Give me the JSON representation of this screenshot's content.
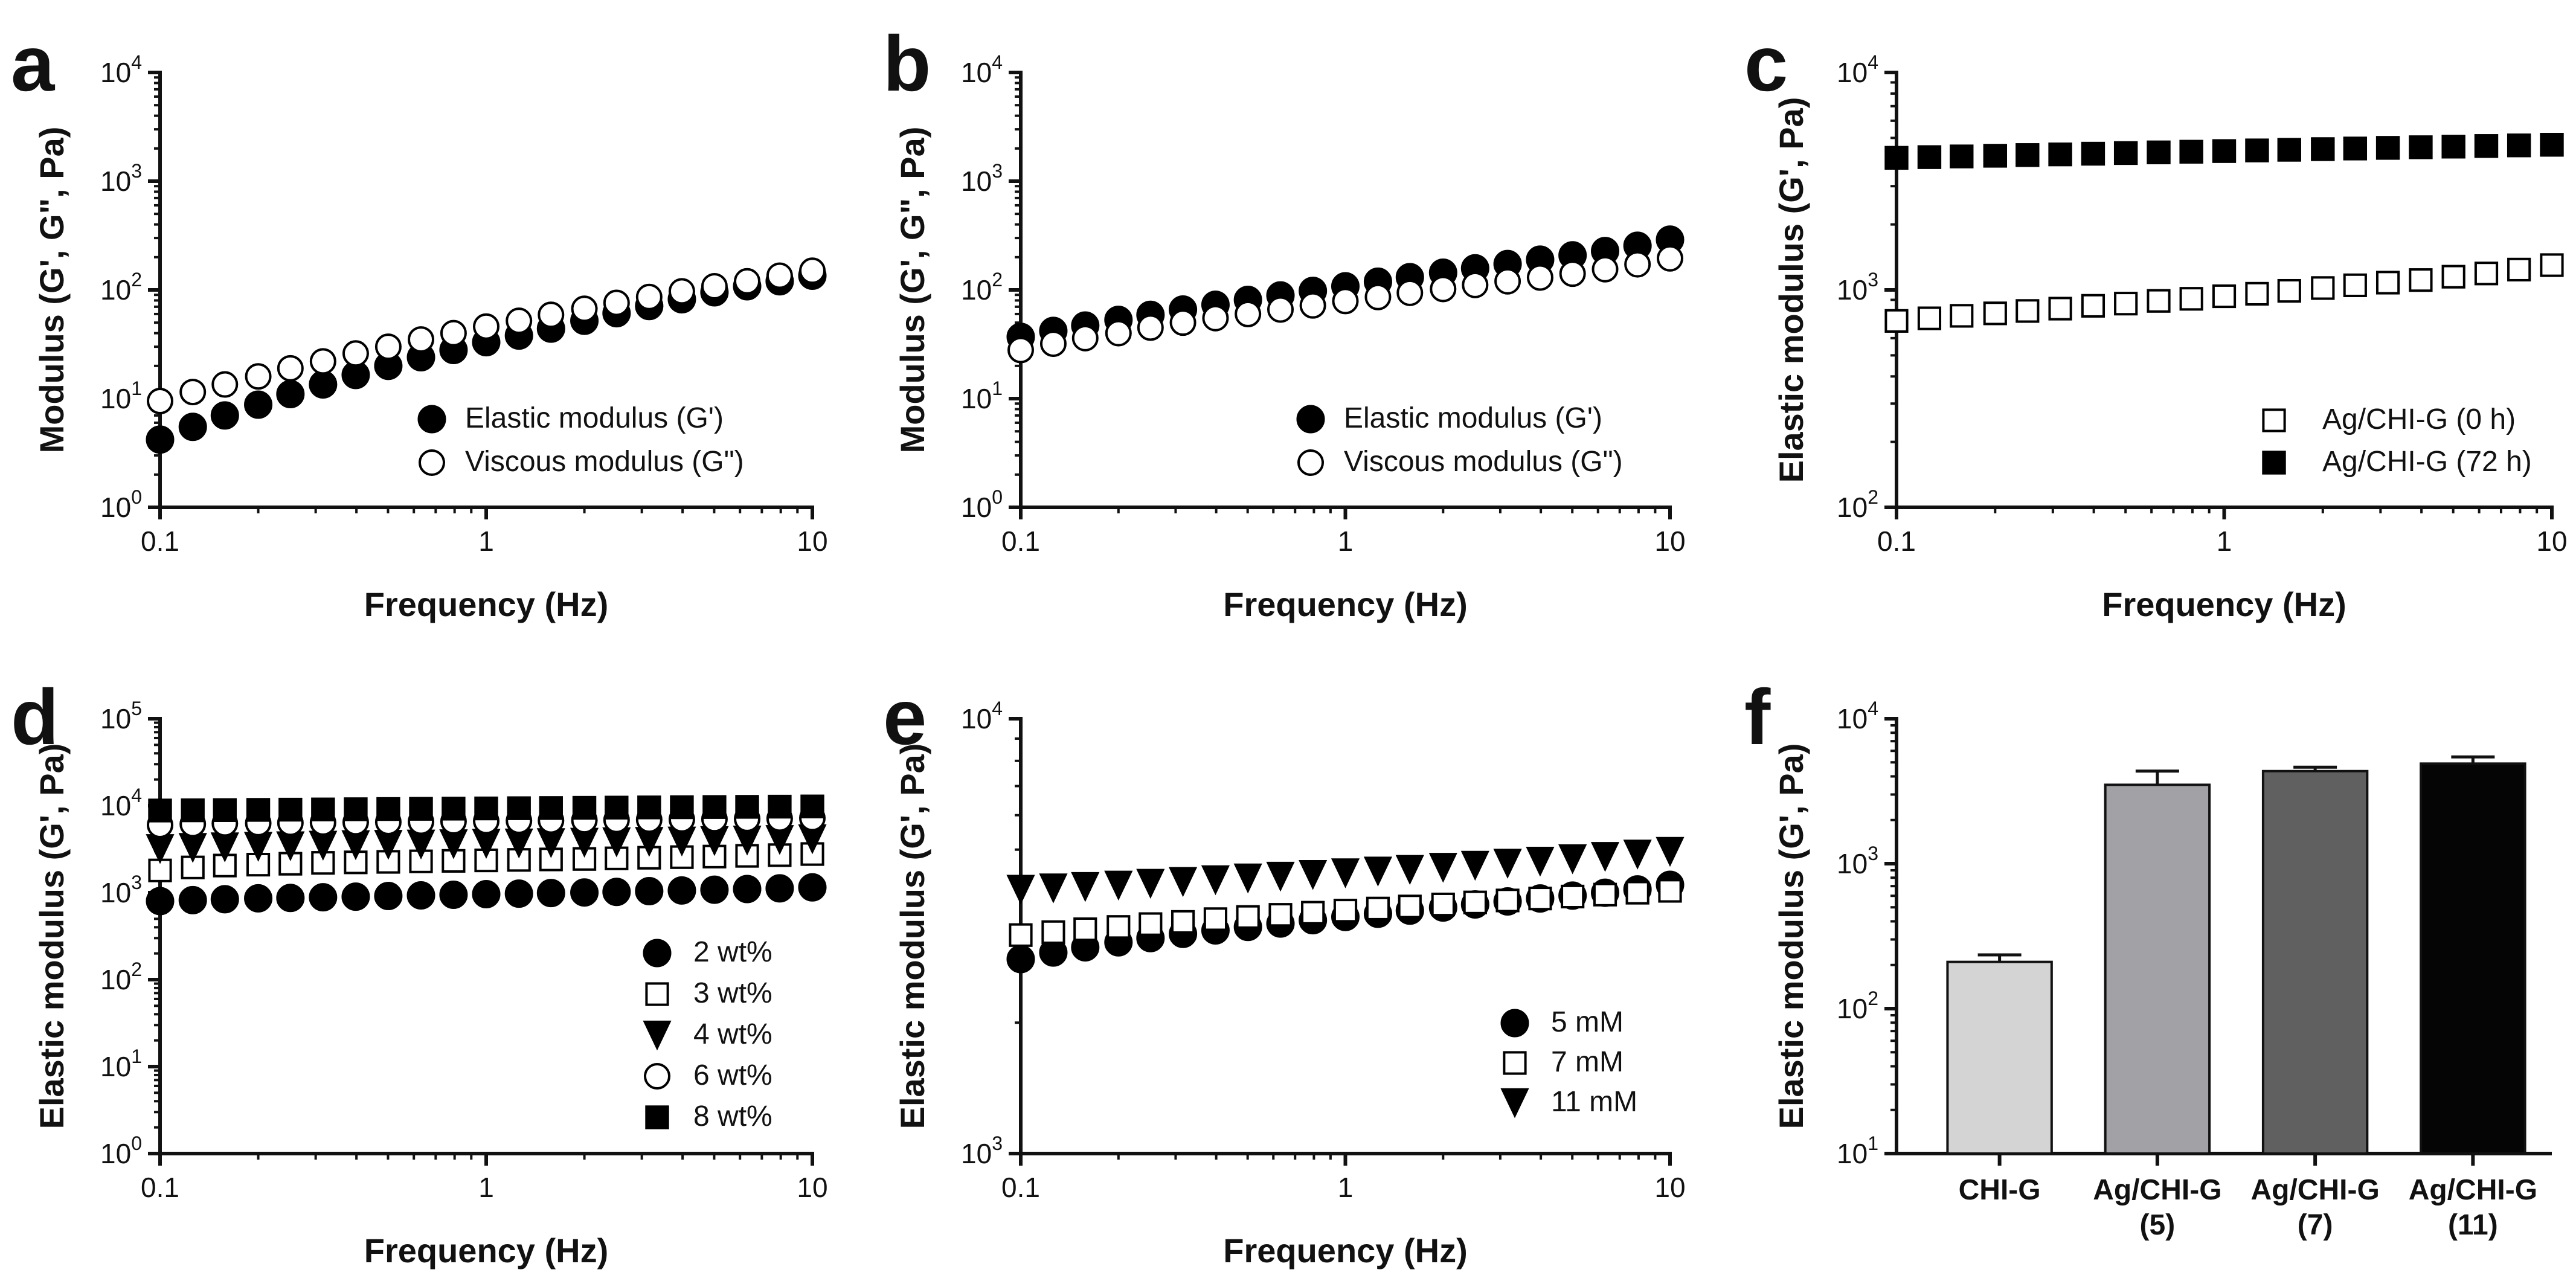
{
  "chart_data": [
    {
      "id": "a",
      "panel_label": "a",
      "type": "scatter",
      "xscale": "log",
      "yscale": "log",
      "xlim": [
        0.1,
        10
      ],
      "ylim": [
        1,
        10000
      ],
      "xticks": [
        "0.1",
        "1",
        "10"
      ],
      "yticks": [
        "10",
        "10",
        "10",
        "10",
        "10"
      ],
      "ytick_exponents": [
        "0",
        "1",
        "2",
        "3",
        "4"
      ],
      "xlabel": "Frequency (Hz)",
      "ylabel": "Modulus (G', G\", Pa)",
      "legend_position": "bottom-right",
      "series": [
        {
          "name": "Elastic modulus (G')",
          "marker": "circle-filled",
          "x": [
            0.1,
            0.126,
            0.158,
            0.2,
            0.251,
            0.316,
            0.398,
            0.501,
            0.631,
            0.794,
            1.0,
            1.26,
            1.58,
            2.0,
            2.51,
            3.16,
            3.98,
            5.01,
            6.31,
            7.94,
            10.0
          ],
          "y": [
            4.2,
            5.5,
            7.0,
            8.8,
            11,
            13.5,
            16.5,
            20,
            24,
            28,
            33,
            38,
            44,
            52,
            61,
            71,
            82,
            95,
            108,
            120,
            135
          ]
        },
        {
          "name": "Viscous modulus (G\")",
          "marker": "circle-open",
          "x": [
            0.1,
            0.126,
            0.158,
            0.2,
            0.251,
            0.316,
            0.398,
            0.501,
            0.631,
            0.794,
            1.0,
            1.26,
            1.58,
            2.0,
            2.51,
            3.16,
            3.98,
            5.01,
            6.31,
            7.94,
            10.0
          ],
          "y": [
            9.5,
            11.5,
            13.5,
            16,
            19,
            22,
            26,
            30,
            35,
            40,
            46,
            52,
            59,
            67,
            76,
            86,
            97,
            108,
            120,
            135,
            150
          ]
        }
      ]
    },
    {
      "id": "b",
      "panel_label": "b",
      "type": "scatter",
      "xscale": "log",
      "yscale": "log",
      "xlim": [
        0.1,
        10
      ],
      "ylim": [
        1,
        10000
      ],
      "xticks": [
        "0.1",
        "1",
        "10"
      ],
      "yticks": [
        "10",
        "10",
        "10",
        "10",
        "10"
      ],
      "ytick_exponents": [
        "0",
        "1",
        "2",
        "3",
        "4"
      ],
      "xlabel": "Frequency (Hz)",
      "ylabel": "Modulus (G', G\", Pa)",
      "legend_position": "bottom-right",
      "series": [
        {
          "name": "Elastic modulus (G')",
          "marker": "circle-filled",
          "x": [
            0.1,
            0.126,
            0.158,
            0.2,
            0.251,
            0.316,
            0.398,
            0.501,
            0.631,
            0.794,
            1.0,
            1.26,
            1.58,
            2.0,
            2.51,
            3.16,
            3.98,
            5.01,
            6.31,
            7.94,
            10.0
          ],
          "y": [
            37,
            42,
            47,
            53,
            59,
            66,
            73,
            81,
            89,
            98,
            108,
            119,
            131,
            144,
            158,
            173,
            190,
            208,
            228,
            255,
            290
          ]
        },
        {
          "name": "Viscous modulus (G\")",
          "marker": "circle-open",
          "x": [
            0.1,
            0.126,
            0.158,
            0.2,
            0.251,
            0.316,
            0.398,
            0.501,
            0.631,
            0.794,
            1.0,
            1.26,
            1.58,
            2.0,
            2.51,
            3.16,
            3.98,
            5.01,
            6.31,
            7.94,
            10.0
          ],
          "y": [
            28,
            32,
            36,
            40,
            45,
            50,
            55,
            60,
            66,
            72,
            79,
            86,
            94,
            102,
            111,
            120,
            130,
            141,
            155,
            172,
            195
          ]
        }
      ]
    },
    {
      "id": "c",
      "panel_label": "c",
      "type": "scatter",
      "xscale": "log",
      "yscale": "log",
      "xlim": [
        0.1,
        10
      ],
      "ylim": [
        100,
        10000
      ],
      "xticks": [
        "0.1",
        "1",
        "10"
      ],
      "yticks": [
        "10",
        "10",
        "10"
      ],
      "ytick_exponents": [
        "2",
        "3",
        "4"
      ],
      "xlabel": "Frequency (Hz)",
      "ylabel": "Elastic modulus (G', Pa)",
      "legend_position": "bottom-right",
      "series": [
        {
          "name": "Ag/CHI-G (0 h)",
          "marker": "square-open",
          "x": [
            0.1,
            0.126,
            0.158,
            0.2,
            0.251,
            0.316,
            0.398,
            0.501,
            0.631,
            0.794,
            1.0,
            1.26,
            1.58,
            2.0,
            2.51,
            3.16,
            3.98,
            5.01,
            6.31,
            7.94,
            10.0
          ],
          "y": [
            720,
            740,
            760,
            780,
            800,
            820,
            845,
            865,
            890,
            910,
            935,
            960,
            990,
            1020,
            1050,
            1080,
            1110,
            1150,
            1190,
            1240,
            1300
          ]
        },
        {
          "name": "Ag/CHI-G (72 h)",
          "marker": "square-filled",
          "x": [
            0.1,
            0.126,
            0.158,
            0.2,
            0.251,
            0.316,
            0.398,
            0.501,
            0.631,
            0.794,
            1.0,
            1.26,
            1.58,
            2.0,
            2.51,
            3.16,
            3.98,
            5.01,
            6.31,
            7.94,
            10.0
          ],
          "y": [
            4050,
            4080,
            4110,
            4140,
            4170,
            4200,
            4230,
            4260,
            4290,
            4320,
            4350,
            4380,
            4410,
            4440,
            4470,
            4500,
            4530,
            4560,
            4590,
            4620,
            4650
          ]
        }
      ]
    },
    {
      "id": "d",
      "panel_label": "d",
      "type": "scatter",
      "xscale": "log",
      "yscale": "log",
      "xlim": [
        0.1,
        10
      ],
      "ylim": [
        1,
        100000
      ],
      "xticks": [
        "0.1",
        "1",
        "10"
      ],
      "yticks": [
        "10",
        "10",
        "10",
        "10",
        "10",
        "10"
      ],
      "ytick_exponents": [
        "0",
        "1",
        "2",
        "3",
        "4",
        "5"
      ],
      "xlabel": "Frequency (Hz)",
      "ylabel": "Elastic modulus (G', Pa)",
      "legend_position": "bottom-right",
      "series": [
        {
          "name": "2 wt%",
          "marker": "circle-filled",
          "x": [
            0.1,
            0.126,
            0.158,
            0.2,
            0.251,
            0.316,
            0.398,
            0.501,
            0.631,
            0.794,
            1.0,
            1.26,
            1.58,
            2.0,
            2.51,
            3.16,
            3.98,
            5.01,
            6.31,
            7.94,
            10.0
          ],
          "y": [
            800,
            820,
            840,
            860,
            870,
            885,
            900,
            915,
            930,
            945,
            960,
            975,
            990,
            1005,
            1020,
            1040,
            1060,
            1080,
            1100,
            1120,
            1150
          ]
        },
        {
          "name": "3 wt%",
          "marker": "square-open",
          "x": [
            0.1,
            0.126,
            0.158,
            0.2,
            0.251,
            0.316,
            0.398,
            0.501,
            0.631,
            0.794,
            1.0,
            1.26,
            1.58,
            2.0,
            2.51,
            3.16,
            3.98,
            5.01,
            6.31,
            7.94,
            10.0
          ],
          "y": [
            1800,
            1950,
            2050,
            2100,
            2150,
            2200,
            2230,
            2260,
            2290,
            2320,
            2350,
            2380,
            2410,
            2440,
            2480,
            2520,
            2560,
            2600,
            2650,
            2700,
            2780
          ]
        },
        {
          "name": "4 wt%",
          "marker": "triangle-down",
          "x": [
            0.1,
            0.126,
            0.158,
            0.2,
            0.251,
            0.316,
            0.398,
            0.501,
            0.631,
            0.794,
            1.0,
            1.26,
            1.58,
            2.0,
            2.51,
            3.16,
            3.98,
            5.01,
            6.31,
            7.94,
            10.0
          ],
          "y": [
            3200,
            3300,
            3350,
            3400,
            3450,
            3500,
            3550,
            3580,
            3610,
            3640,
            3680,
            3710,
            3750,
            3790,
            3830,
            3870,
            3910,
            3960,
            4010,
            4070,
            4150
          ]
        },
        {
          "name": "6 wt%",
          "marker": "circle-open",
          "x": [
            0.1,
            0.126,
            0.158,
            0.2,
            0.251,
            0.316,
            0.398,
            0.501,
            0.631,
            0.794,
            1.0,
            1.26,
            1.58,
            2.0,
            2.51,
            3.16,
            3.98,
            5.01,
            6.31,
            7.94,
            10.0
          ],
          "y": [
            6000,
            6150,
            6250,
            6300,
            6350,
            6400,
            6450,
            6500,
            6550,
            6600,
            6650,
            6700,
            6750,
            6800,
            6850,
            6900,
            6950,
            7000,
            7050,
            7100,
            7200
          ]
        },
        {
          "name": "8 wt%",
          "marker": "square-filled",
          "x": [
            0.1,
            0.126,
            0.158,
            0.2,
            0.251,
            0.316,
            0.398,
            0.501,
            0.631,
            0.794,
            1.0,
            1.26,
            1.58,
            2.0,
            2.51,
            3.16,
            3.98,
            5.01,
            6.31,
            7.94,
            10.0
          ],
          "y": [
            8800,
            8850,
            8900,
            8950,
            9000,
            9050,
            9100,
            9150,
            9200,
            9250,
            9300,
            9350,
            9400,
            9450,
            9500,
            9550,
            9600,
            9650,
            9700,
            9750,
            9800
          ]
        }
      ]
    },
    {
      "id": "e",
      "panel_label": "e",
      "type": "scatter",
      "xscale": "log",
      "yscale": "log",
      "xlim": [
        0.1,
        10
      ],
      "ylim": [
        1000,
        10000
      ],
      "xticks": [
        "0.1",
        "1",
        "10"
      ],
      "yticks": [
        "10",
        "10"
      ],
      "ytick_exponents": [
        "3",
        "4"
      ],
      "xlabel": "Frequency (Hz)",
      "ylabel": "Elastic modulus (G', Pa)",
      "legend_position": "bottom-right",
      "series": [
        {
          "name": "5 mM",
          "marker": "circle-filled",
          "x": [
            0.1,
            0.126,
            0.158,
            0.2,
            0.251,
            0.316,
            0.398,
            0.501,
            0.631,
            0.794,
            1.0,
            1.26,
            1.58,
            2.0,
            2.51,
            3.16,
            3.98,
            5.01,
            6.31,
            7.94,
            10.0
          ],
          "y": [
            2800,
            2900,
            2980,
            3060,
            3130,
            3200,
            3260,
            3320,
            3380,
            3440,
            3500,
            3560,
            3620,
            3680,
            3740,
            3800,
            3860,
            3920,
            3980,
            4050,
            4150
          ]
        },
        {
          "name": "7 mM",
          "marker": "square-open",
          "x": [
            0.1,
            0.126,
            0.158,
            0.2,
            0.251,
            0.316,
            0.398,
            0.501,
            0.631,
            0.794,
            1.0,
            1.26,
            1.58,
            2.0,
            2.51,
            3.16,
            3.98,
            5.01,
            6.31,
            7.94,
            10.0
          ],
          "y": [
            3180,
            3230,
            3280,
            3320,
            3370,
            3410,
            3460,
            3500,
            3540,
            3580,
            3620,
            3660,
            3700,
            3740,
            3780,
            3820,
            3860,
            3900,
            3940,
            3980,
            4020
          ]
        },
        {
          "name": "11 mM",
          "marker": "triangle-down",
          "x": [
            0.1,
            0.126,
            0.158,
            0.2,
            0.251,
            0.316,
            0.398,
            0.501,
            0.631,
            0.794,
            1.0,
            1.26,
            1.58,
            2.0,
            2.51,
            3.16,
            3.98,
            5.01,
            6.31,
            7.94,
            10.0
          ],
          "y": [
            4050,
            4080,
            4110,
            4140,
            4180,
            4220,
            4260,
            4300,
            4340,
            4380,
            4420,
            4460,
            4500,
            4550,
            4600,
            4650,
            4700,
            4760,
            4820,
            4880,
            4950
          ]
        }
      ]
    },
    {
      "id": "f",
      "panel_label": "f",
      "type": "bar",
      "yscale": "log",
      "ylim": [
        10,
        10000
      ],
      "yticks": [
        "10",
        "10",
        "10",
        "10"
      ],
      "ytick_exponents": [
        "1",
        "2",
        "3",
        "4"
      ],
      "xlabel": "",
      "ylabel": "Elastic modulus (G', Pa)",
      "categories": [
        [
          "CHI-G"
        ],
        [
          "Ag/CHI-G",
          "(5)"
        ],
        [
          "Ag/CHI-G",
          "(7)"
        ],
        [
          "Ag/CHI-G",
          "(11)"
        ]
      ],
      "values": [
        210,
        3500,
        4350,
        4900
      ],
      "errors": [
        25,
        850,
        280,
        550
      ],
      "colors": [
        "#d4d4d4",
        "#a2a2a6",
        "#606060",
        "#050505"
      ]
    }
  ]
}
